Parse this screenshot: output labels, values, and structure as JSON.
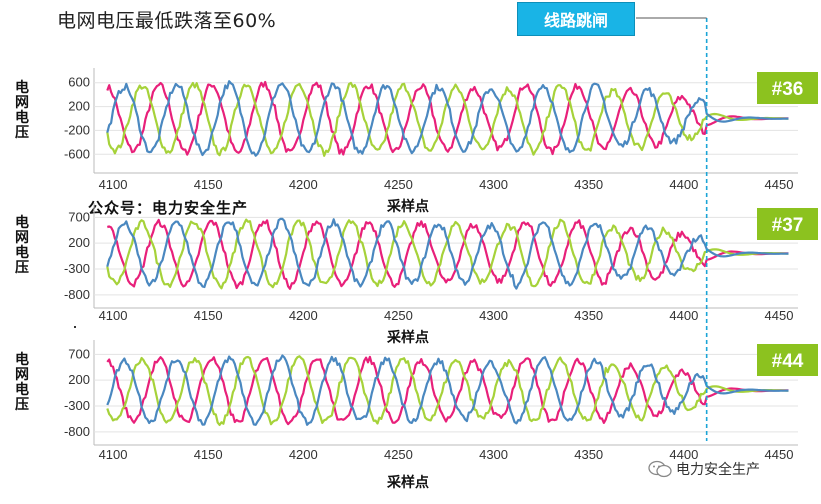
{
  "title": "电网电压最低跌落至60%",
  "trip_label": "线路跳闸",
  "watermark_top": "公众号：电力安全生产",
  "watermark_bottom": "电力安全生产",
  "colors": {
    "phase_a": "#e8207a",
    "phase_b": "#a6d23a",
    "phase_c": "#4a88c0",
    "badge": "#8cc21f",
    "trip_line": "#1ba5d6"
  },
  "chart_data": [
    {
      "type": "line",
      "badge": "#36",
      "ylabel": "电网电压",
      "xlabel": "采样点",
      "xlim": [
        4090,
        4460
      ],
      "ylim": [
        -780,
        780
      ],
      "x_ticks": [
        4100,
        4150,
        4200,
        4250,
        4300,
        4350,
        4400,
        4450
      ],
      "y_ticks": [
        600,
        200,
        -200,
        -600
      ],
      "trip_at": 4412,
      "series": [
        {
          "color": "#e8207a",
          "amplitude": 520,
          "phase": 0
        },
        {
          "color": "#a6d23a",
          "amplitude": 520,
          "phase": 120
        },
        {
          "color": "#4a88c0",
          "amplitude": 520,
          "phase": 240
        }
      ]
    },
    {
      "type": "line",
      "badge": "#37",
      "ylabel": "电网电压",
      "xlabel": "采样点",
      "xlim": [
        4090,
        4460
      ],
      "ylim": [
        -900,
        900
      ],
      "x_ticks": [
        4100,
        4150,
        4200,
        4250,
        4300,
        4350,
        4400,
        4450
      ],
      "y_ticks": [
        700,
        200,
        -300,
        -800
      ],
      "trip_at": 4412,
      "series": [
        {
          "color": "#e8207a",
          "amplitude": 560,
          "phase": 0
        },
        {
          "color": "#a6d23a",
          "amplitude": 560,
          "phase": 120
        },
        {
          "color": "#4a88c0",
          "amplitude": 560,
          "phase": 240
        }
      ]
    },
    {
      "type": "line",
      "badge": "#44",
      "ylabel": "电网电压",
      "xlabel": "采样点",
      "xlim": [
        4090,
        4460
      ],
      "ylim": [
        -900,
        900
      ],
      "x_ticks": [
        4100,
        4150,
        4200,
        4250,
        4300,
        4350,
        4400,
        4450
      ],
      "y_ticks": [
        700,
        200,
        -300,
        -800
      ],
      "trip_at": 4412,
      "series": [
        {
          "color": "#e8207a",
          "amplitude": 560,
          "phase": 0
        },
        {
          "color": "#a6d23a",
          "amplitude": 560,
          "phase": 120
        },
        {
          "color": "#4a88c0",
          "amplitude": 560,
          "phase": 240
        }
      ]
    }
  ]
}
